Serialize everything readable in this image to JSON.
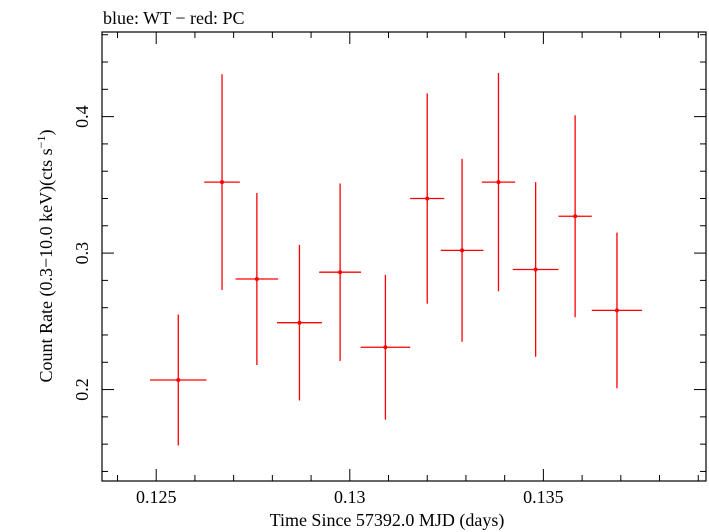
{
  "chart_data": {
    "type": "scatter",
    "title": "blue: WT − red: PC",
    "xlabel": "Time Since 57392.0 MJD (days)",
    "ylabel": "Count Rate (0.3−10.0 keV)(cts s",
    "ylabel_sup": "−1",
    "ylabel_tail": ")",
    "xlim": [
      0.1236,
      0.1392
    ],
    "ylim": [
      0.133,
      0.462
    ],
    "xticks": [
      {
        "value": 0.125,
        "label": "0.125"
      },
      {
        "value": 0.13,
        "label": "0.13"
      },
      {
        "value": 0.135,
        "label": "0.135"
      }
    ],
    "yticks": [
      {
        "value": 0.2,
        "label": "0.2"
      },
      {
        "value": 0.3,
        "label": "0.3"
      },
      {
        "value": 0.4,
        "label": "0.4"
      }
    ],
    "grid": false,
    "legend": "none",
    "series": [
      {
        "color": "#ff0000",
        "points": [
          {
            "x": 0.12557,
            "xerr": 0.00073,
            "y": 0.207,
            "yerr": 0.048
          },
          {
            "x": 0.1267,
            "xerr": 0.00046,
            "y": 0.352,
            "yerr": 0.079
          },
          {
            "x": 0.1276,
            "xerr": 0.00055,
            "y": 0.281,
            "yerr": 0.063
          },
          {
            "x": 0.1287,
            "xerr": 0.00058,
            "y": 0.249,
            "yerr": 0.057
          },
          {
            "x": 0.12975,
            "xerr": 0.00054,
            "y": 0.286,
            "yerr": 0.065
          },
          {
            "x": 0.13092,
            "xerr": 0.00064,
            "y": 0.231,
            "yerr": 0.053
          },
          {
            "x": 0.132,
            "xerr": 0.00044,
            "y": 0.34,
            "yerr": 0.077
          },
          {
            "x": 0.1329,
            "xerr": 0.00055,
            "y": 0.302,
            "yerr": 0.067
          },
          {
            "x": 0.13384,
            "xerr": 0.00043,
            "y": 0.352,
            "yerr": 0.08
          },
          {
            "x": 0.1348,
            "xerr": 0.00059,
            "y": 0.288,
            "yerr": 0.064
          },
          {
            "x": 0.13582,
            "xerr": 0.00043,
            "y": 0.327,
            "yerr": 0.074
          },
          {
            "x": 0.1369,
            "xerr": 0.00065,
            "y": 0.258,
            "yerr": 0.057
          }
        ]
      }
    ]
  }
}
